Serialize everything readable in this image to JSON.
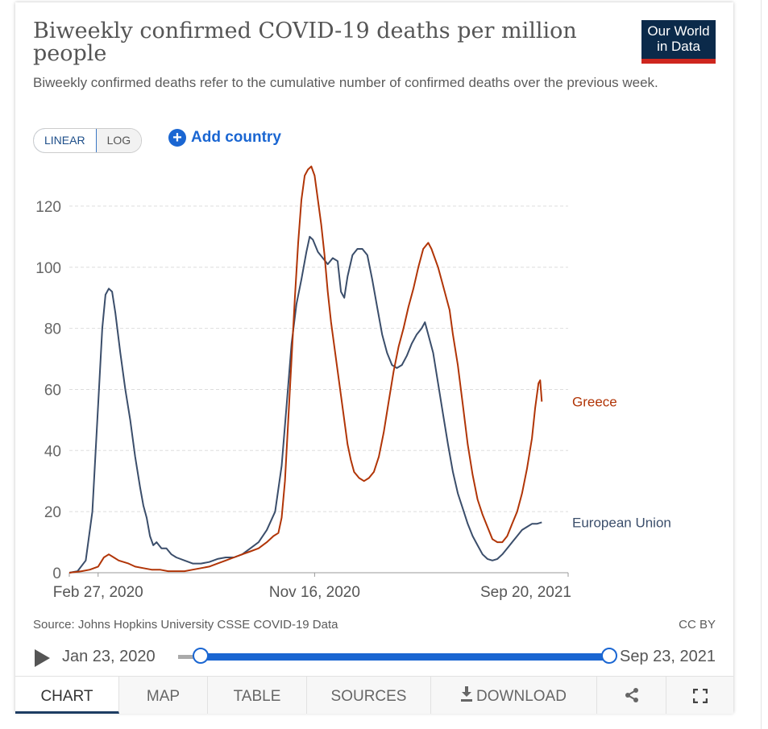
{
  "header": {
    "title": "Biweekly confirmed COVID-19 deaths per million people",
    "subtitle": "Biweekly confirmed deaths refer to the cumulative number of confirmed deaths over the previous week.",
    "logo_line1": "Our World",
    "logo_line2": "in Data",
    "logo_color": "#0b2a4a",
    "logo_bar_color": "#ce261e"
  },
  "controls": {
    "scale_linear": "LINEAR",
    "scale_log": "LOG",
    "active_scale": "LINEAR",
    "add_country": "Add country",
    "add_icon": "plus-circle-icon"
  },
  "chart_data": {
    "type": "line",
    "ylim": [
      0,
      130
    ],
    "yticks": [
      0,
      20,
      40,
      60,
      80,
      100,
      120
    ],
    "ytick_labels": [
      "0",
      "20",
      "40",
      "60",
      "80",
      "100",
      "120"
    ],
    "xtick_labels": [
      "Feb 27, 2020",
      "Nov 16, 2020",
      "Sep 20, 2021"
    ],
    "xtick_days": [
      35,
      298,
      606
    ],
    "x_start_date": "Jan 23, 2020",
    "grid": "horizontal dashed",
    "series": [
      {
        "name": "European Union",
        "color": "#3b4e6b",
        "points": [
          [
            0,
            0
          ],
          [
            10,
            0.5
          ],
          [
            20,
            4
          ],
          [
            28,
            20
          ],
          [
            35,
            55
          ],
          [
            40,
            80
          ],
          [
            44,
            91
          ],
          [
            48,
            93
          ],
          [
            52,
            92
          ],
          [
            56,
            85
          ],
          [
            62,
            72
          ],
          [
            68,
            60
          ],
          [
            74,
            50
          ],
          [
            80,
            38
          ],
          [
            86,
            28
          ],
          [
            90,
            22
          ],
          [
            94,
            18
          ],
          [
            98,
            12
          ],
          [
            102,
            9
          ],
          [
            106,
            10
          ],
          [
            112,
            8
          ],
          [
            118,
            8
          ],
          [
            124,
            6
          ],
          [
            130,
            5
          ],
          [
            140,
            4
          ],
          [
            150,
            3
          ],
          [
            160,
            3
          ],
          [
            170,
            3.5
          ],
          [
            180,
            4.5
          ],
          [
            190,
            5
          ],
          [
            200,
            5
          ],
          [
            210,
            6
          ],
          [
            220,
            8
          ],
          [
            230,
            10
          ],
          [
            240,
            14
          ],
          [
            250,
            20
          ],
          [
            258,
            35
          ],
          [
            264,
            55
          ],
          [
            270,
            75
          ],
          [
            276,
            88
          ],
          [
            282,
            96
          ],
          [
            288,
            105
          ],
          [
            292,
            110
          ],
          [
            296,
            109
          ],
          [
            302,
            105
          ],
          [
            308,
            103
          ],
          [
            314,
            101
          ],
          [
            320,
            103
          ],
          [
            326,
            102
          ],
          [
            330,
            92
          ],
          [
            334,
            90
          ],
          [
            338,
            97
          ],
          [
            344,
            104
          ],
          [
            350,
            106
          ],
          [
            356,
            106
          ],
          [
            362,
            104
          ],
          [
            368,
            96
          ],
          [
            374,
            87
          ],
          [
            380,
            78
          ],
          [
            386,
            72
          ],
          [
            392,
            68
          ],
          [
            398,
            67
          ],
          [
            404,
            68
          ],
          [
            410,
            71
          ],
          [
            416,
            75
          ],
          [
            422,
            78
          ],
          [
            428,
            80
          ],
          [
            432,
            82
          ],
          [
            436,
            78
          ],
          [
            442,
            72
          ],
          [
            448,
            62
          ],
          [
            454,
            52
          ],
          [
            460,
            42
          ],
          [
            466,
            33
          ],
          [
            472,
            26
          ],
          [
            478,
            21
          ],
          [
            484,
            16
          ],
          [
            490,
            12
          ],
          [
            496,
            9
          ],
          [
            502,
            6
          ],
          [
            508,
            4.5
          ],
          [
            514,
            4
          ],
          [
            520,
            4.5
          ],
          [
            526,
            6
          ],
          [
            532,
            8
          ],
          [
            538,
            10
          ],
          [
            544,
            12
          ],
          [
            550,
            14
          ],
          [
            556,
            15
          ],
          [
            562,
            16
          ],
          [
            568,
            16
          ],
          [
            574,
            16.5
          ]
        ]
      },
      {
        "name": "Greece",
        "color": "#b13507",
        "points": [
          [
            0,
            0
          ],
          [
            15,
            0.5
          ],
          [
            25,
            1
          ],
          [
            35,
            2
          ],
          [
            42,
            5
          ],
          [
            48,
            6
          ],
          [
            54,
            5
          ],
          [
            60,
            4
          ],
          [
            66,
            3.5
          ],
          [
            72,
            3
          ],
          [
            80,
            2
          ],
          [
            90,
            1.5
          ],
          [
            100,
            1
          ],
          [
            110,
            1
          ],
          [
            120,
            0.5
          ],
          [
            130,
            0.5
          ],
          [
            140,
            0.5
          ],
          [
            150,
            1
          ],
          [
            160,
            1.5
          ],
          [
            170,
            2
          ],
          [
            180,
            3
          ],
          [
            190,
            4
          ],
          [
            200,
            5
          ],
          [
            210,
            6
          ],
          [
            220,
            7
          ],
          [
            230,
            8
          ],
          [
            240,
            10
          ],
          [
            248,
            12
          ],
          [
            254,
            13
          ],
          [
            258,
            18
          ],
          [
            262,
            30
          ],
          [
            266,
            50
          ],
          [
            270,
            70
          ],
          [
            274,
            90
          ],
          [
            278,
            108
          ],
          [
            282,
            122
          ],
          [
            286,
            130
          ],
          [
            290,
            132
          ],
          [
            294,
            133
          ],
          [
            298,
            130
          ],
          [
            302,
            122
          ],
          [
            306,
            114
          ],
          [
            310,
            104
          ],
          [
            314,
            92
          ],
          [
            318,
            82
          ],
          [
            322,
            74
          ],
          [
            326,
            66
          ],
          [
            330,
            58
          ],
          [
            334,
            50
          ],
          [
            338,
            42
          ],
          [
            342,
            37
          ],
          [
            346,
            33
          ],
          [
            352,
            31
          ],
          [
            358,
            30
          ],
          [
            364,
            31
          ],
          [
            370,
            33
          ],
          [
            376,
            38
          ],
          [
            382,
            46
          ],
          [
            388,
            56
          ],
          [
            394,
            66
          ],
          [
            400,
            74
          ],
          [
            406,
            80
          ],
          [
            412,
            87
          ],
          [
            418,
            93
          ],
          [
            424,
            100
          ],
          [
            430,
            106
          ],
          [
            436,
            108
          ],
          [
            440,
            106
          ],
          [
            444,
            103
          ],
          [
            448,
            100
          ],
          [
            452,
            96
          ],
          [
            456,
            92
          ],
          [
            462,
            86
          ],
          [
            466,
            78
          ],
          [
            472,
            68
          ],
          [
            478,
            55
          ],
          [
            484,
            42
          ],
          [
            490,
            32
          ],
          [
            496,
            24
          ],
          [
            502,
            19
          ],
          [
            508,
            15
          ],
          [
            514,
            11
          ],
          [
            520,
            10
          ],
          [
            526,
            10
          ],
          [
            532,
            12
          ],
          [
            538,
            16
          ],
          [
            544,
            20
          ],
          [
            550,
            26
          ],
          [
            556,
            34
          ],
          [
            562,
            44
          ],
          [
            566,
            54
          ],
          [
            570,
            62
          ],
          [
            572,
            63
          ],
          [
            574,
            56
          ]
        ]
      }
    ]
  },
  "footer": {
    "source": "Source: Johns Hopkins University CSSE COVID-19 Data",
    "license": "CC BY",
    "timeline_start": "Jan 23, 2020",
    "timeline_end": "Sep 23, 2021"
  },
  "tabs": [
    {
      "label": "CHART",
      "active": true
    },
    {
      "label": "MAP",
      "active": false
    },
    {
      "label": "TABLE",
      "active": false
    },
    {
      "label": "SOURCES",
      "active": false
    },
    {
      "label": "DOWNLOAD",
      "active": false
    }
  ]
}
